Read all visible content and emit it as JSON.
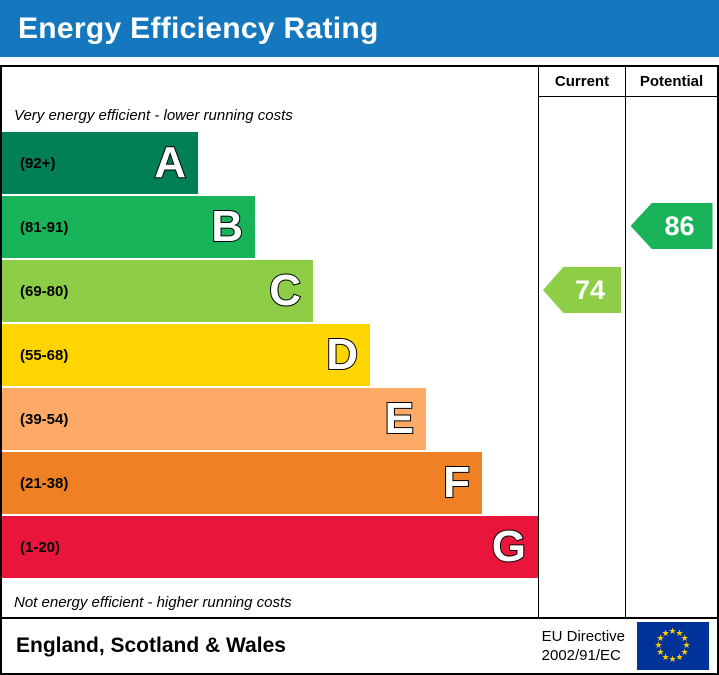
{
  "title": "Energy Efficiency Rating",
  "colors": {
    "header_blue": "#1577bd"
  },
  "columns": {
    "current": "Current",
    "potential": "Potential"
  },
  "top_note": "Very energy efficient - lower running costs",
  "bottom_note": "Not energy efficient - higher running costs",
  "bands": [
    {
      "letter": "A",
      "range": "(92+)",
      "color": "#008054"
    },
    {
      "letter": "B",
      "range": "(81-91)",
      "color": "#19b459"
    },
    {
      "letter": "C",
      "range": "(69-80)",
      "color": "#8dce46"
    },
    {
      "letter": "D",
      "range": "(55-68)",
      "color": "#ffd500"
    },
    {
      "letter": "E",
      "range": "(39-54)",
      "color": "#fcaa65"
    },
    {
      "letter": "F",
      "range": "(21-38)",
      "color": "#ef8023"
    },
    {
      "letter": "G",
      "range": "(1-20)",
      "color": "#e9153b"
    }
  ],
  "current": {
    "value": "74",
    "band": "C",
    "color": "#8dce46"
  },
  "potential": {
    "value": "86",
    "band": "B",
    "color": "#19b459"
  },
  "footer": {
    "region": "England, Scotland & Wales",
    "directive_line1": "EU Directive",
    "directive_line2": "2002/91/EC"
  },
  "eu_flag": {
    "star": "★",
    "count": 12,
    "background": "#003399",
    "star_color": "#ffcc00"
  },
  "chart_data": {
    "type": "bar",
    "title": "Energy Efficiency Rating",
    "categories": [
      "A",
      "B",
      "C",
      "D",
      "E",
      "F",
      "G"
    ],
    "band_ranges": [
      "92+",
      "81-91",
      "69-80",
      "55-68",
      "39-54",
      "21-38",
      "1-20"
    ],
    "band_colors": [
      "#008054",
      "#19b459",
      "#8dce46",
      "#ffd500",
      "#fcaa65",
      "#ef8023",
      "#e9153b"
    ],
    "scale": [
      1,
      100
    ],
    "markers": [
      {
        "name": "Current",
        "value": 74,
        "band": "C"
      },
      {
        "name": "Potential",
        "value": 86,
        "band": "B"
      }
    ],
    "notes": [
      "Very energy efficient - lower running costs",
      "Not energy efficient - higher running costs"
    ],
    "footer_region": "England, Scotland & Wales",
    "footer_directive": "EU Directive 2002/91/EC"
  }
}
